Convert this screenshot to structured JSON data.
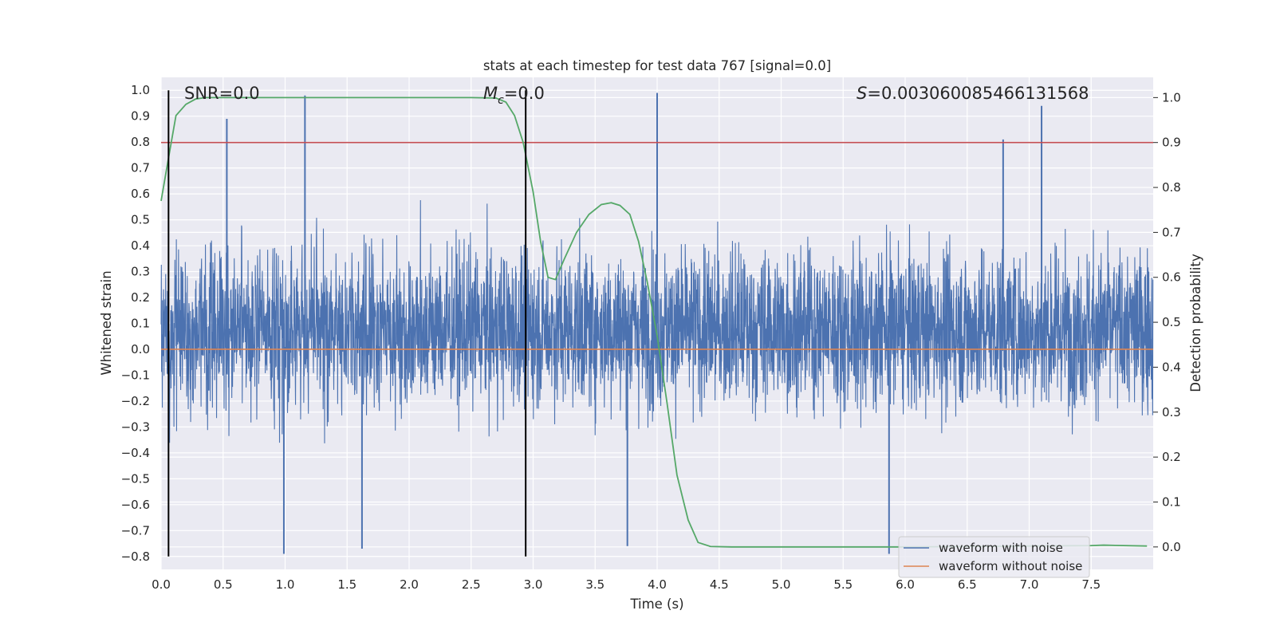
{
  "chart_data": {
    "type": "line",
    "title": "stats at each timestep for test data 767 [signal=0.0]",
    "xlabel": "Time (s)",
    "ylabel_left": "Whitened strain",
    "ylabel_right": "Detection probability",
    "xlim": [
      0.0,
      8.0
    ],
    "ylim_left": [
      -0.85,
      1.05
    ],
    "ylim_right": [
      -0.05,
      1.045
    ],
    "x_ticks": [
      "0.0",
      "0.5",
      "1.0",
      "1.5",
      "2.0",
      "2.5",
      "3.0",
      "3.5",
      "4.0",
      "4.5",
      "5.0",
      "5.5",
      "6.0",
      "6.5",
      "7.0",
      "7.5"
    ],
    "y_ticks_left": [
      "1.0",
      "0.9",
      "0.8",
      "0.7",
      "0.6",
      "0.5",
      "0.4",
      "0.3",
      "0.2",
      "0.1",
      "0.0",
      "−0.1",
      "−0.2",
      "−0.3",
      "−0.4",
      "−0.5",
      "−0.6",
      "−0.7",
      "−0.8"
    ],
    "y_ticks_right": [
      "1.0",
      "0.9",
      "0.8",
      "0.7",
      "0.6",
      "0.5",
      "0.4",
      "0.3",
      "0.2",
      "0.1",
      "0.0"
    ],
    "annotations": {
      "snr": "SNR=0.0",
      "mc_symbol": "M",
      "mc_subscript": "c",
      "mc_value": "=0.0",
      "s_symbol": "S",
      "s_value": "=0.003060085466131568"
    },
    "threshold_right": 0.9,
    "vlines_x": [
      0.06,
      2.94
    ],
    "grid": true,
    "legend_position": "lower-right",
    "series": [
      {
        "name": "waveform with noise",
        "color": "#4c72b0",
        "axis": "left",
        "description_values": "dense noise, roughly within [-0.8, 1.0]",
        "spikes": [
          {
            "x": 0.53,
            "y": 0.89
          },
          {
            "x": 1.16,
            "y": 0.98
          },
          {
            "x": 4.0,
            "y": 0.99
          },
          {
            "x": 7.1,
            "y": 0.94
          },
          {
            "x": 6.79,
            "y": 0.81
          },
          {
            "x": 0.99,
            "y": -0.79
          },
          {
            "x": 1.62,
            "y": -0.77
          },
          {
            "x": 3.76,
            "y": -0.76
          },
          {
            "x": 5.87,
            "y": -0.79
          }
        ]
      },
      {
        "name": "waveform without noise",
        "color": "#dd8452",
        "axis": "left",
        "values_constant": 0.0
      },
      {
        "name": "detection probability",
        "color": "#55a868",
        "axis": "right",
        "x": [
          0.0,
          0.05,
          0.12,
          0.2,
          0.28,
          0.36,
          0.5,
          1.0,
          1.5,
          2.0,
          2.5,
          2.7,
          2.78,
          2.85,
          2.92,
          3.0,
          3.06,
          3.12,
          3.18,
          3.25,
          3.35,
          3.45,
          3.55,
          3.63,
          3.7,
          3.78,
          3.85,
          3.92,
          4.0,
          4.08,
          4.16,
          4.25,
          4.33,
          4.43,
          4.6,
          5.0,
          6.0,
          7.0,
          7.5,
          7.6,
          7.95
        ],
        "y": [
          0.77,
          0.85,
          0.96,
          0.985,
          0.997,
          1.0,
          1.0,
          1.0,
          1.0,
          1.0,
          1.0,
          0.999,
          0.99,
          0.96,
          0.9,
          0.79,
          0.68,
          0.6,
          0.595,
          0.64,
          0.7,
          0.74,
          0.762,
          0.766,
          0.76,
          0.74,
          0.68,
          0.59,
          0.47,
          0.32,
          0.16,
          0.06,
          0.01,
          0.001,
          0.0,
          0.0,
          0.0,
          0.002,
          0.003,
          0.004,
          0.002
        ]
      },
      {
        "name": "threshold",
        "color": "#c44e52",
        "axis": "right",
        "values_constant": 0.9
      }
    ]
  }
}
